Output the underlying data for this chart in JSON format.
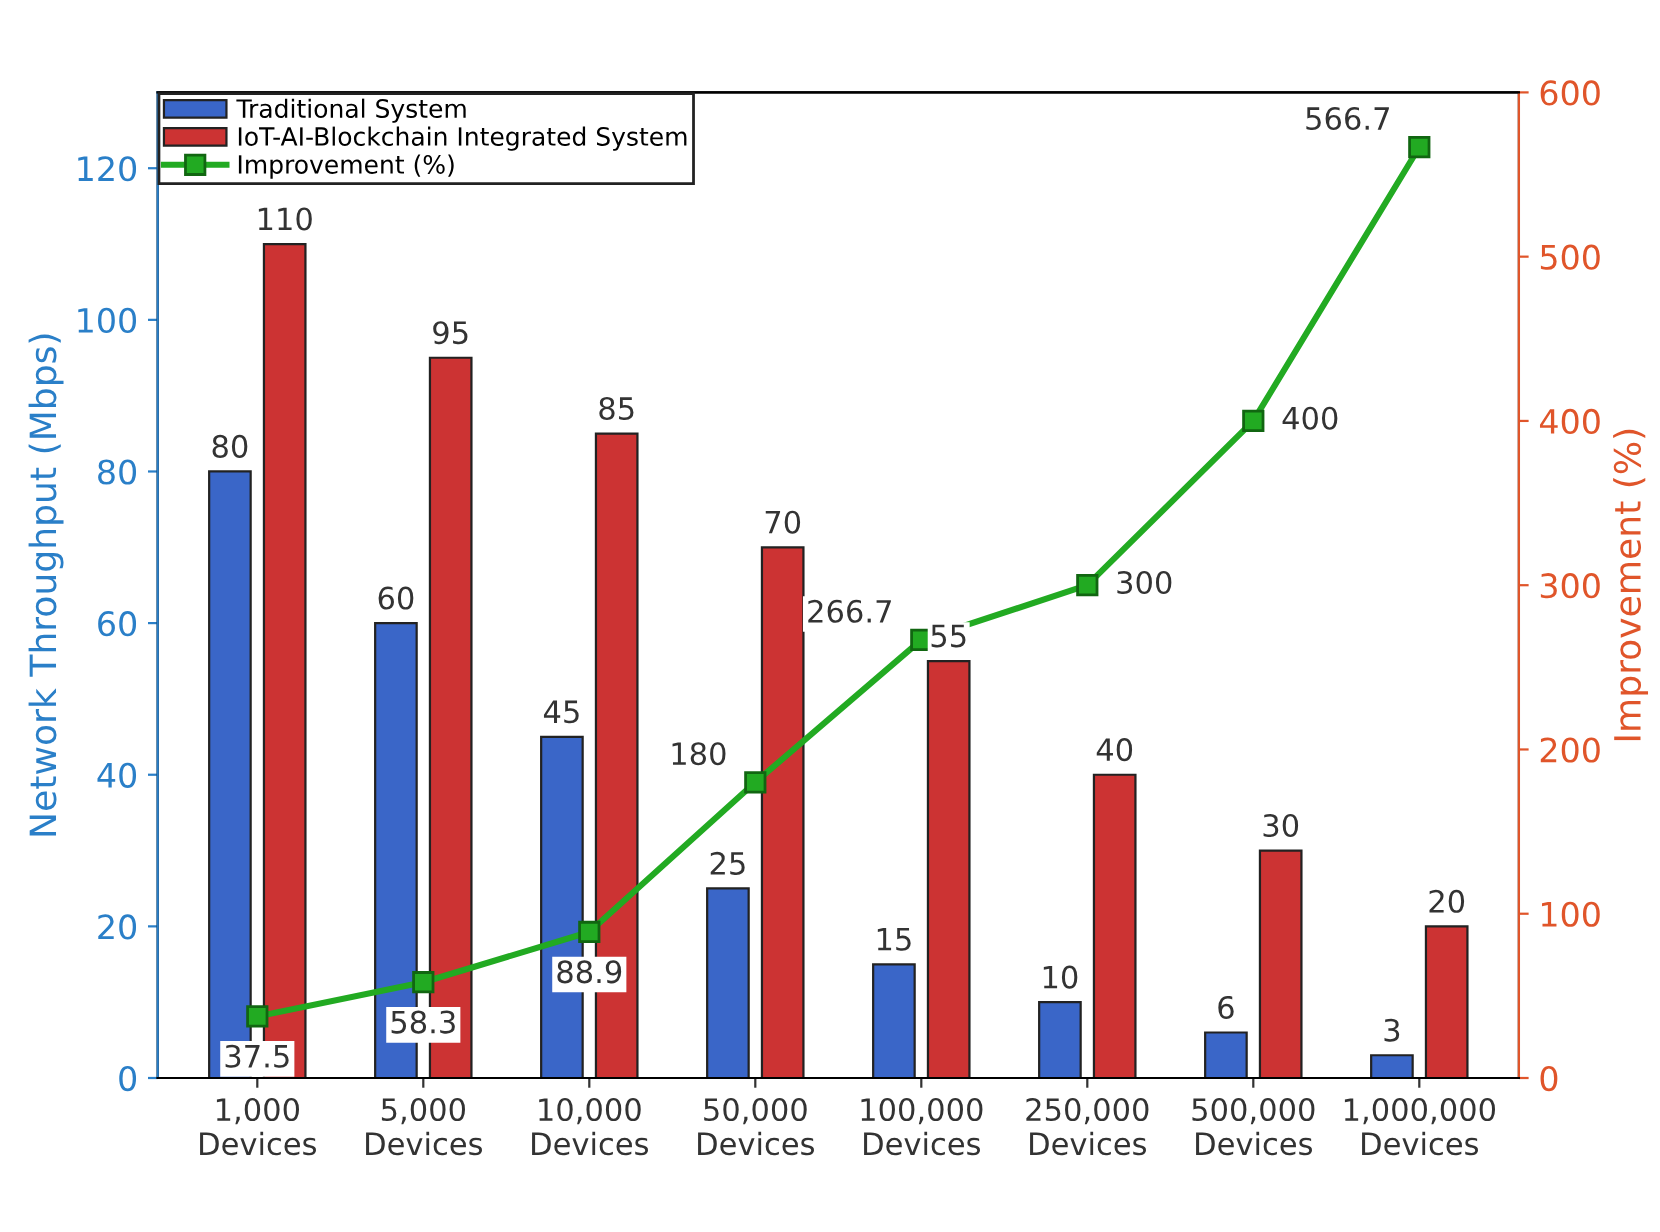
{
  "chart_data": {
    "type": "bar",
    "categories": [
      "1,000\nDevices",
      "5,000\nDevices",
      "10,000\nDevices",
      "50,000\nDevices",
      "100,000\nDevices",
      "250,000\nDevices",
      "500,000\nDevices",
      "1,000,000\nDevices"
    ],
    "series": [
      {
        "name": "Traditional System",
        "color": "#3a66c8",
        "values": [
          80,
          60,
          45,
          25,
          15,
          10,
          6,
          3
        ]
      },
      {
        "name": "IoT-AI-Blockchain Integrated System",
        "color": "#cc3333",
        "values": [
          110,
          95,
          85,
          70,
          55,
          40,
          30,
          20
        ]
      },
      {
        "name": "Improvement (%)",
        "type": "line",
        "axis": "y2",
        "color": "#22aa22",
        "marker": "square",
        "line_style": "solid",
        "values": [
          37.5,
          58.3,
          88.9,
          180,
          266.7,
          300,
          400,
          566.7
        ]
      }
    ],
    "ylabel": "Network Throughput (Mbps)",
    "y2label": "Improvement (%)",
    "ylim": [
      0,
      130
    ],
    "yticks": [
      0,
      20,
      40,
      60,
      80,
      100,
      120
    ],
    "y2lim": [
      0,
      600
    ],
    "y2ticks": [
      0,
      100,
      200,
      300,
      400,
      500,
      600
    ],
    "data_labels": true,
    "legend": "top left",
    "grid": false
  }
}
